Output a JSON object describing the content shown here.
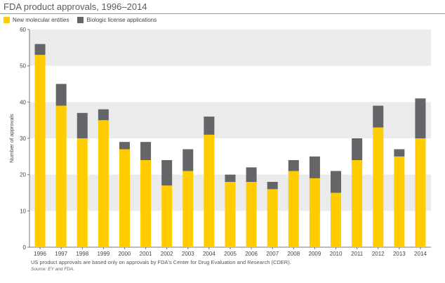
{
  "title": "FDA product approvals, 1996–2014",
  "legend": [
    {
      "label": "New molecular entities",
      "color": "#ffcc00"
    },
    {
      "label": "Biologic license applications",
      "color": "#646469"
    }
  ],
  "footnote": "US product approvals are based only on approvals by FDA's Center for Drug Evaluation and Research (CDER).",
  "source": "Source: EY and FDA.",
  "chart_data": {
    "type": "bar",
    "stacked": true,
    "title": "FDA product approvals, 1996–2014",
    "xlabel": "",
    "ylabel": "Number of approvals",
    "ylim": [
      0,
      60
    ],
    "yticks": [
      0,
      10,
      20,
      30,
      40,
      50,
      60
    ],
    "categories": [
      "1996",
      "1997",
      "1998",
      "1999",
      "2000",
      "2001",
      "2002",
      "2003",
      "2004",
      "2005",
      "2006",
      "2007",
      "2008",
      "2009",
      "2010",
      "2011",
      "2012",
      "2013",
      "2014"
    ],
    "series": [
      {
        "name": "New molecular entities",
        "color": "#ffcc00",
        "values": [
          53,
          39,
          30,
          35,
          27,
          24,
          17,
          21,
          31,
          18,
          18,
          16,
          21,
          19,
          15,
          24,
          33,
          25,
          30
        ]
      },
      {
        "name": "Biologic license applications",
        "color": "#646469",
        "values": [
          3,
          6,
          7,
          3,
          2,
          5,
          7,
          6,
          5,
          2,
          4,
          2,
          3,
          6,
          6,
          6,
          6,
          2,
          11
        ]
      }
    ],
    "bands": [
      [
        10,
        20
      ],
      [
        30,
        40
      ],
      [
        50,
        60
      ]
    ],
    "band_color": "#ebebeb"
  }
}
